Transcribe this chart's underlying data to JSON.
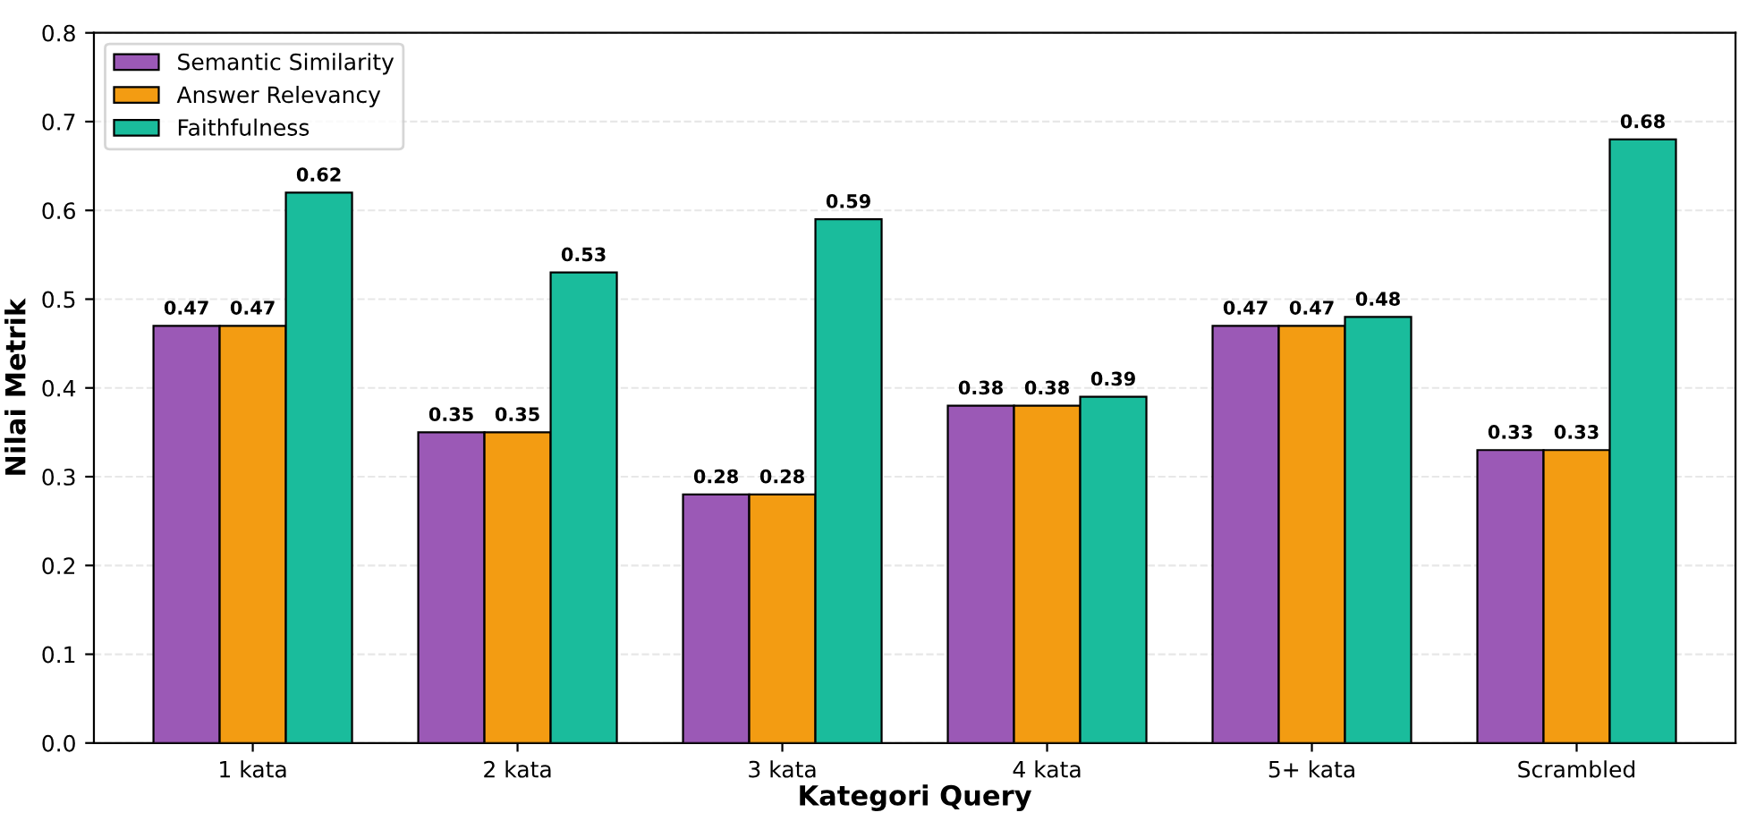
{
  "chart_data": {
    "type": "bar",
    "xlabel": "Kategori Query",
    "ylabel": "Nilai Metrik",
    "categories": [
      "1 kata",
      "2 kata",
      "3 kata",
      "4 kata",
      "5+ kata",
      "Scrambled"
    ],
    "series": [
      {
        "name": "Semantic Similarity",
        "color": "#9b59b6",
        "values": [
          0.47,
          0.35,
          0.28,
          0.38,
          0.47,
          0.33
        ]
      },
      {
        "name": "Answer Relevancy",
        "color": "#f39c12",
        "values": [
          0.47,
          0.35,
          0.28,
          0.38,
          0.47,
          0.33
        ]
      },
      {
        "name": "Faithfulness",
        "color": "#1abc9c",
        "values": [
          0.62,
          0.53,
          0.59,
          0.39,
          0.48,
          0.68
        ]
      }
    ],
    "ylim": [
      0.0,
      0.8
    ],
    "yticks": [
      {
        "value": 0,
        "label": "0.0"
      },
      0.1,
      0.2,
      0.3,
      0.4,
      0.5,
      0.6,
      0.7,
      0.8
    ],
    "grid": "y",
    "legend": "top left",
    "data_labels": true
  }
}
